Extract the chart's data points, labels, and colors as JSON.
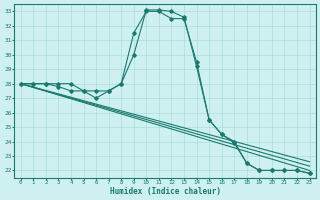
{
  "xlabel": "Humidex (Indice chaleur)",
  "ylabel": "",
  "xlim": [
    -0.5,
    23.5
  ],
  "ylim": [
    21.5,
    33.5
  ],
  "xticks": [
    0,
    1,
    2,
    3,
    4,
    5,
    6,
    7,
    8,
    9,
    10,
    11,
    12,
    13,
    14,
    15,
    16,
    17,
    18,
    19,
    20,
    21,
    22,
    23
  ],
  "yticks": [
    22,
    23,
    24,
    25,
    26,
    27,
    28,
    29,
    30,
    31,
    32,
    33
  ],
  "bg_color": "#cff0f0",
  "grid_color": "#aadddd",
  "line_color": "#1a7a6e",
  "lines": [
    {
      "x": [
        0,
        1,
        2,
        3,
        4,
        5,
        6,
        7,
        8,
        9,
        10,
        11,
        12,
        13,
        14,
        15,
        16,
        17,
        18,
        19,
        20,
        21,
        22,
        23
      ],
      "y": [
        28,
        28,
        28,
        28,
        28,
        27.5,
        27.5,
        27.5,
        28,
        31.5,
        33,
        33,
        32.5,
        32.5,
        29.5,
        25.5,
        24.5,
        24,
        22.5,
        22,
        22,
        22,
        22,
        21.8
      ],
      "marker": "D",
      "markersize": 1.8
    },
    {
      "x": [
        0,
        1,
        2,
        3,
        4,
        5,
        6,
        7,
        8,
        9,
        10,
        11,
        12,
        13,
        14,
        15,
        16,
        17,
        18,
        19,
        20,
        21,
        22,
        23
      ],
      "y": [
        28,
        28,
        28,
        27.8,
        27.5,
        27.5,
        27,
        27.5,
        28,
        30,
        33.1,
        33.1,
        33,
        32.6,
        29.2,
        25.5,
        24.5,
        23.9,
        22.5,
        22,
        22,
        22,
        22,
        21.8
      ],
      "marker": "D",
      "markersize": 1.8
    },
    {
      "x": [
        0,
        23
      ],
      "y": [
        28,
        22
      ],
      "marker": null,
      "markersize": 0
    },
    {
      "x": [
        0,
        23
      ],
      "y": [
        28,
        22.3
      ],
      "marker": null,
      "markersize": 0
    },
    {
      "x": [
        0,
        23
      ],
      "y": [
        28,
        22.6
      ],
      "marker": null,
      "markersize": 0
    }
  ]
}
